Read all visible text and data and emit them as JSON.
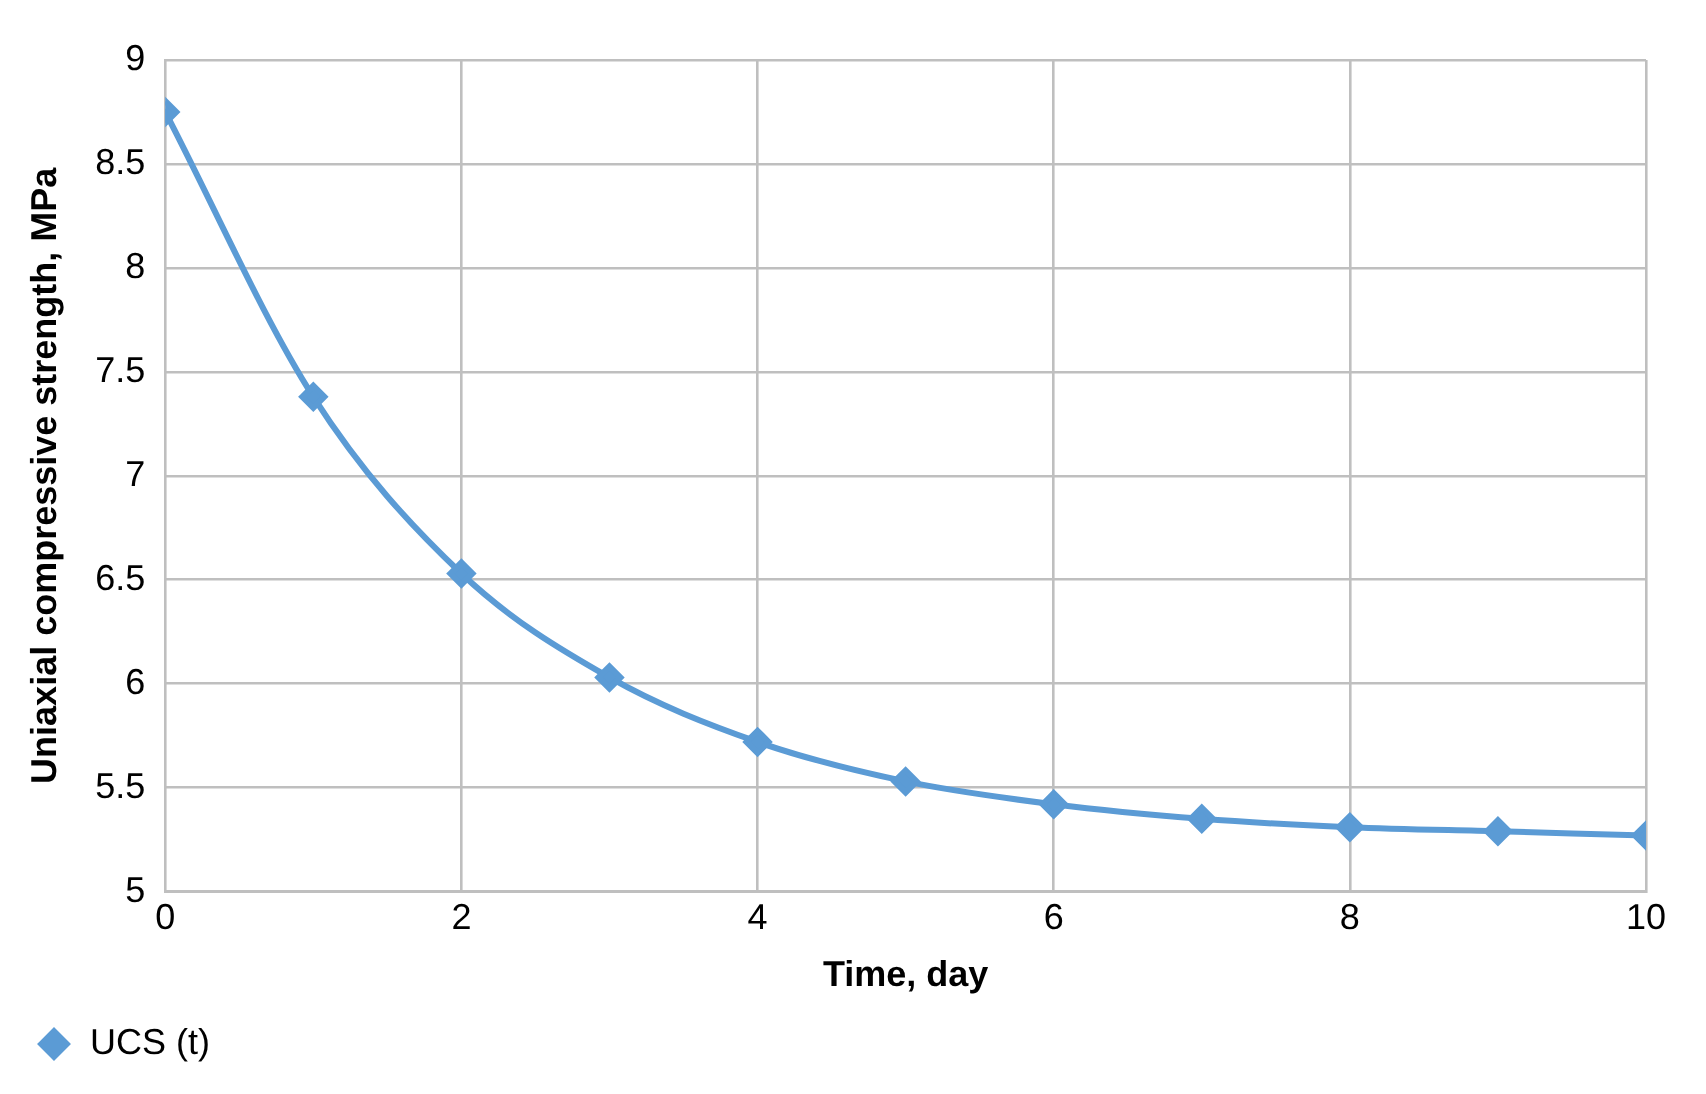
{
  "chart_data": {
    "type": "line",
    "xlabel": "Time, day",
    "ylabel": "Uniaxial compressive strength, MPa",
    "x": [
      0,
      1,
      2,
      3,
      4,
      5,
      6,
      7,
      8,
      9,
      10
    ],
    "series": [
      {
        "name": "UCS (t)",
        "color": "#5b9bd5",
        "values": [
          8.75,
          7.38,
          6.53,
          6.03,
          5.72,
          5.53,
          5.42,
          5.35,
          5.31,
          5.29,
          5.27
        ]
      }
    ],
    "xlim": [
      0,
      10
    ],
    "xticks": [
      0,
      2,
      4,
      6,
      8,
      10
    ],
    "ylim": [
      5,
      9
    ],
    "yticks": [
      5,
      5.5,
      6,
      6.5,
      7,
      7.5,
      8,
      8.5,
      9
    ],
    "grid": true,
    "legend": "bottom left",
    "marker": "diamond",
    "line_style": "solid"
  }
}
